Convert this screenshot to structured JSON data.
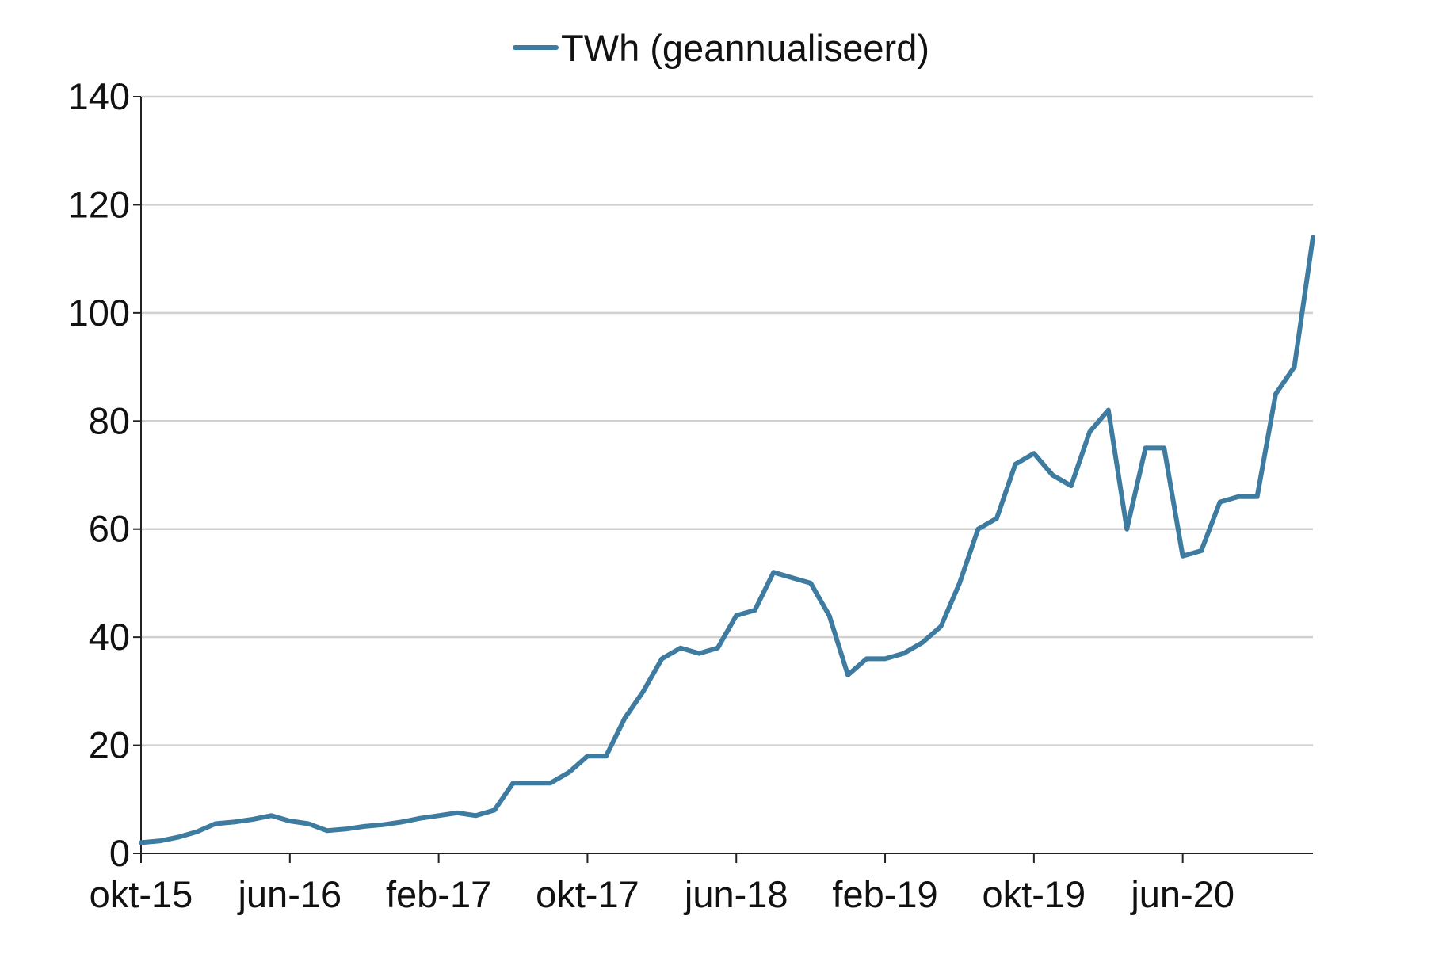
{
  "chart_data": {
    "type": "line",
    "categories": [
      "okt-15",
      null,
      null,
      null,
      null,
      null,
      null,
      null,
      "jun-16",
      null,
      null,
      null,
      null,
      null,
      null,
      null,
      "feb-17",
      null,
      null,
      null,
      null,
      null,
      null,
      null,
      "okt-17",
      null,
      null,
      null,
      null,
      null,
      null,
      null,
      "jun-18",
      null,
      null,
      null,
      null,
      null,
      null,
      null,
      "feb-19",
      null,
      null,
      null,
      null,
      null,
      null,
      null,
      "okt-19",
      null,
      null,
      null,
      null,
      null,
      null,
      null,
      "jun-20",
      null,
      null,
      null,
      null,
      null,
      null,
      null
    ],
    "series": [
      {
        "name": "TWh (geannualiseerd)",
        "color": "#3d7ba0",
        "values": [
          2,
          2.3,
          3,
          4,
          5.5,
          5.8,
          6.3,
          7,
          6,
          5.5,
          4.2,
          4.5,
          5,
          5.3,
          5.8,
          6.5,
          7,
          7.5,
          7,
          8,
          13,
          13,
          13,
          15,
          18,
          18,
          25,
          30,
          36,
          38,
          37,
          38,
          44,
          45,
          52,
          51,
          50,
          44,
          33,
          36,
          36,
          37,
          39,
          42,
          50,
          60,
          62,
          72,
          74,
          70,
          68,
          78,
          82,
          60,
          75,
          75,
          55,
          56,
          65,
          66,
          66,
          85,
          90,
          114
        ]
      }
    ],
    "ylim": [
      0,
      140
    ],
    "yticks": [
      0,
      20,
      40,
      60,
      80,
      100,
      120,
      140
    ],
    "grid": true,
    "legend": "top"
  }
}
